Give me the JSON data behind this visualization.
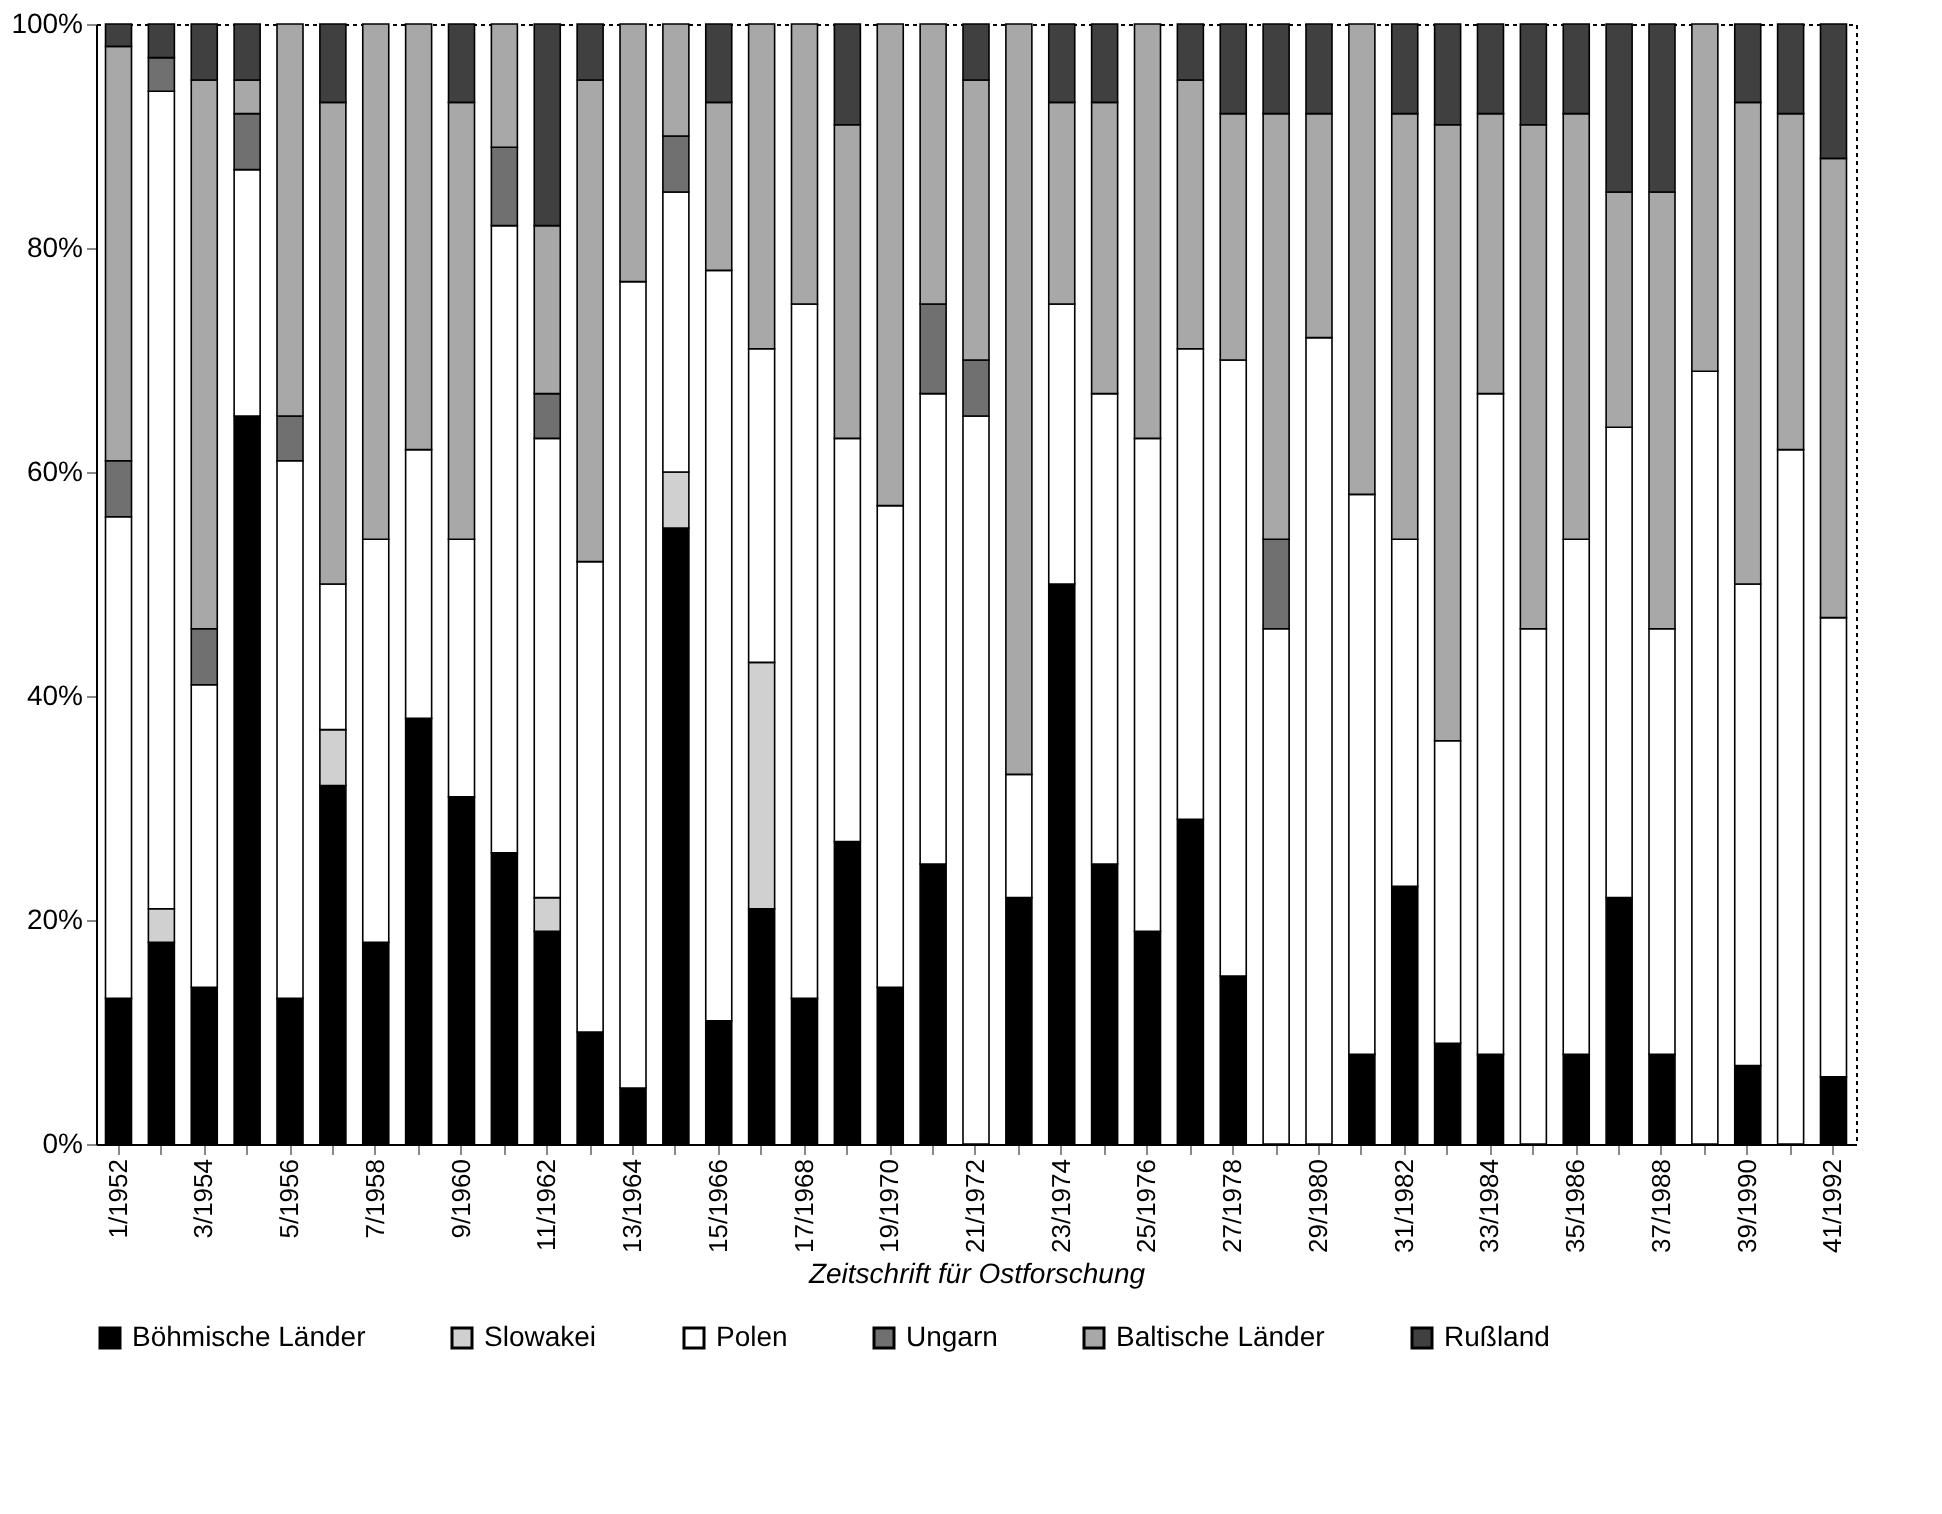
{
  "chart_data": {
    "type": "bar",
    "stacked": true,
    "categories": [
      "1/1952",
      null,
      "3/1954",
      null,
      "5/1956",
      null,
      "7/1958",
      null,
      "9/1960",
      null,
      "11/1962",
      null,
      "13/1964",
      null,
      "15/1966",
      null,
      "17/1968",
      null,
      "19/1970",
      null,
      "21/1972",
      null,
      "23/1974",
      null,
      "25/1976",
      null,
      "27/1978",
      null,
      "29/1980",
      null,
      "31/1982",
      null,
      "33/1984",
      null,
      "35/1986",
      null,
      "37/1988",
      null,
      "39/1990",
      null,
      "41/1992"
    ],
    "xlabel": "Zeitschrift für Ostforschung",
    "ylim": [
      0,
      100
    ],
    "yticks": [
      {
        "value": 0,
        "label": "0%"
      },
      {
        "value": 20,
        "label": "20%"
      },
      {
        "value": 40,
        "label": "40%"
      },
      {
        "value": 60,
        "label": "60%"
      },
      {
        "value": 80,
        "label": "80%"
      },
      {
        "value": 100,
        "label": "100%"
      }
    ],
    "grid": false,
    "legend": "bottom",
    "series": [
      {
        "name": "Böhmische Länder",
        "color": "#000000",
        "values": [
          13,
          18,
          14,
          65,
          13,
          32,
          18,
          38,
          31,
          26,
          19,
          10,
          5,
          55,
          11,
          21,
          13,
          27,
          14,
          25,
          0,
          22,
          50,
          25,
          19,
          29,
          15,
          0,
          0,
          8,
          23,
          9,
          8,
          0,
          8,
          22,
          8,
          0,
          7,
          0,
          6
        ]
      },
      {
        "name": "Slowakei",
        "color": "#d0d0d0",
        "values": [
          0,
          3,
          0,
          0,
          0,
          5,
          0,
          0,
          0,
          0,
          3,
          0,
          0,
          5,
          0,
          22,
          0,
          0,
          0,
          0,
          0,
          0,
          0,
          0,
          0,
          0,
          0,
          0,
          0,
          0,
          0,
          0,
          0,
          0,
          0,
          0,
          0,
          0,
          0,
          0,
          0
        ]
      },
      {
        "name": "Polen",
        "color": "#ffffff",
        "values": [
          43,
          73,
          27,
          22,
          48,
          13,
          36,
          24,
          23,
          56,
          41,
          42,
          72,
          25,
          67,
          28,
          62,
          36,
          43,
          42,
          65,
          11,
          25,
          42,
          44,
          42,
          55,
          46,
          72,
          50,
          31,
          27,
          59,
          46,
          46,
          42,
          38,
          69,
          43,
          62,
          41
        ]
      },
      {
        "name": "Ungarn",
        "color": "#707070",
        "values": [
          5,
          3,
          5,
          5,
          4,
          0,
          0,
          0,
          0,
          7,
          4,
          0,
          0,
          5,
          0,
          0,
          0,
          0,
          0,
          8,
          5,
          0,
          0,
          0,
          0,
          0,
          0,
          8,
          0,
          0,
          0,
          0,
          0,
          0,
          0,
          0,
          0,
          0,
          0,
          0,
          0
        ]
      },
      {
        "name": "Baltische Länder",
        "color": "#a8a8a8",
        "values": [
          37,
          0,
          49,
          3,
          35,
          43,
          46,
          38,
          39,
          11,
          15,
          43,
          23,
          10,
          15,
          29,
          25,
          28,
          43,
          25,
          25,
          67,
          18,
          26,
          37,
          24,
          22,
          38,
          20,
          42,
          38,
          55,
          25,
          45,
          38,
          21,
          39,
          31,
          43,
          30,
          41
        ]
      },
      {
        "name": "Rußland",
        "color": "#404040",
        "values": [
          2,
          3,
          5,
          5,
          0,
          7,
          0,
          0,
          7,
          0,
          18,
          5,
          0,
          0,
          7,
          0,
          0,
          9,
          0,
          0,
          5,
          0,
          7,
          7,
          0,
          5,
          8,
          8,
          8,
          0,
          8,
          9,
          8,
          9,
          8,
          15,
          15,
          0,
          7,
          8,
          12
        ]
      }
    ]
  }
}
